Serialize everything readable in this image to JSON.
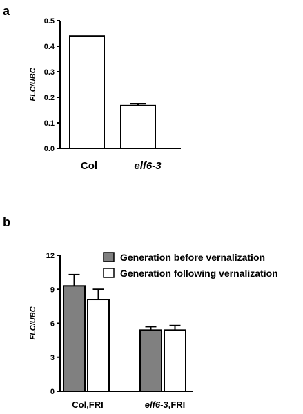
{
  "chart_data": [
    {
      "panel": "a",
      "type": "bar",
      "ylabel": "FLC/UBC",
      "ylim": [
        0,
        0.5
      ],
      "yticks": [
        "0.0",
        "0.1",
        "0.2",
        "0.3",
        "0.4",
        "0.5"
      ],
      "categories": [
        {
          "parts": [
            {
              "text": "Col",
              "italic": false
            }
          ]
        },
        {
          "parts": [
            {
              "text": "elf6-3",
              "italic": true
            }
          ]
        }
      ],
      "series": [
        {
          "color": "#ffffff",
          "values": [
            0.44,
            0.168
          ],
          "errors": [
            0,
            0.007
          ]
        }
      ]
    },
    {
      "panel": "b",
      "type": "bar",
      "ylabel": "FLC/UBC",
      "ylim": [
        0,
        12
      ],
      "yticks": [
        "0",
        "3",
        "6",
        "9",
        "12"
      ],
      "categories": [
        {
          "parts": [
            {
              "text": "Col,FRI",
              "italic": false
            }
          ]
        },
        {
          "parts": [
            {
              "text": "elf6-3",
              "italic": true
            },
            {
              "text": ",FRI",
              "italic": false
            }
          ]
        }
      ],
      "series": [
        {
          "name": "Generation before vernalization",
          "color": "#808080",
          "values": [
            9.3,
            5.4
          ],
          "errors": [
            1.0,
            0.3
          ]
        },
        {
          "name": "Generation following  vernalization",
          "color": "#ffffff",
          "values": [
            8.1,
            5.4
          ],
          "errors": [
            0.9,
            0.4
          ]
        }
      ],
      "legend": "top-right"
    }
  ]
}
